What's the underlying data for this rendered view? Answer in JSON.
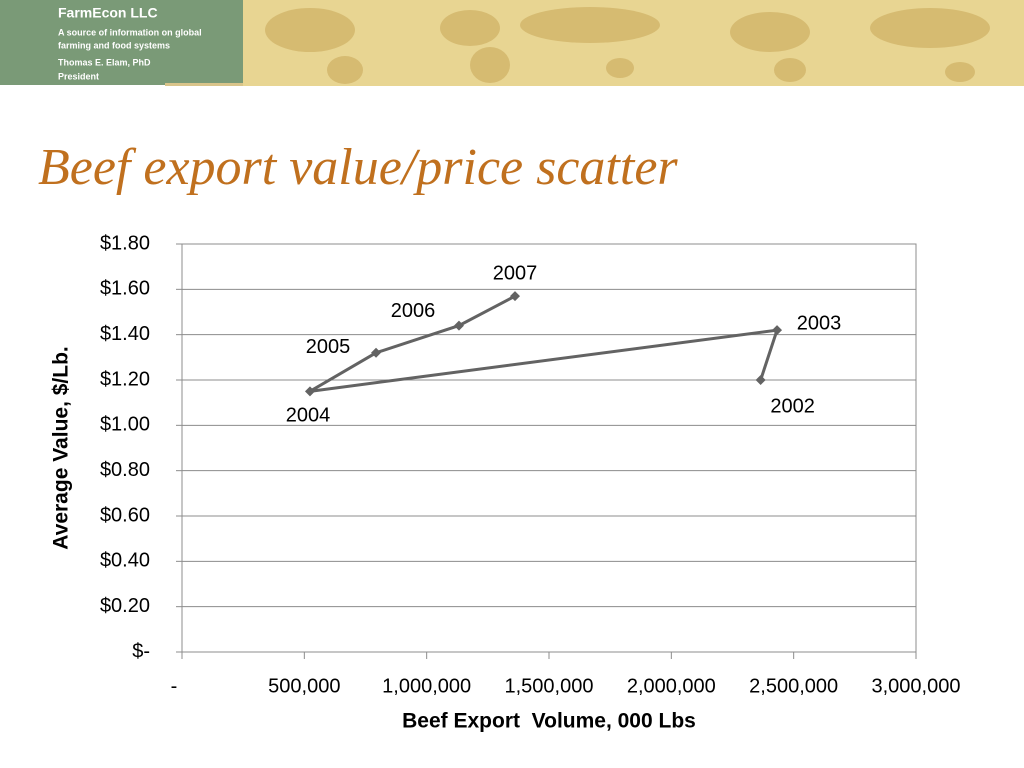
{
  "header": {
    "company": "FarmEcon LLC",
    "tagline": [
      "A source of information on global",
      "farming and food systems"
    ],
    "author": "Thomas E. Elam, PhD",
    "role": "President"
  },
  "chart_data": {
    "type": "scatter",
    "title": "Beef export value/price scatter",
    "x_label": "Beef Export  Volume, 000 Lbs",
    "y_label": "Average Value, $/Lb.",
    "x": [
      2365000,
      2432000,
      523000,
      793000,
      1132000,
      1361000
    ],
    "values": [
      1.2,
      1.42,
      1.15,
      1.32,
      1.44,
      1.57
    ],
    "labels": [
      "2002",
      "2003",
      "2004",
      "2005",
      "2006",
      "2007"
    ],
    "connected": true,
    "color": "#636363",
    "grid": true,
    "xlim": [
      0,
      3000000
    ],
    "xticks": [
      {
        "value": 0,
        "label": "-"
      },
      {
        "value": 500000,
        "label": "500,000"
      },
      {
        "value": 1000000,
        "label": "1,000,000"
      },
      {
        "value": 1500000,
        "label": "1,500,000"
      },
      {
        "value": 2000000,
        "label": "2,000,000"
      },
      {
        "value": 2500000,
        "label": "2,500,000"
      },
      {
        "value": 3000000,
        "label": "3,000,000"
      }
    ],
    "ylim": [
      0,
      1.8
    ],
    "yticks": [
      {
        "value": 0,
        "label": "$-"
      },
      {
        "value": 0.2,
        "label": "$0.20"
      },
      {
        "value": 0.4,
        "label": "$0.40"
      },
      {
        "value": 0.6,
        "label": "$0.60"
      },
      {
        "value": 0.8,
        "label": "$0.80"
      },
      {
        "value": 1.0,
        "label": "$1.00"
      },
      {
        "value": 1.2,
        "label": "$1.20"
      },
      {
        "value": 1.4,
        "label": "$1.40"
      },
      {
        "value": 1.6,
        "label": "$1.60"
      },
      {
        "value": 1.8,
        "label": "$1.80"
      }
    ]
  }
}
